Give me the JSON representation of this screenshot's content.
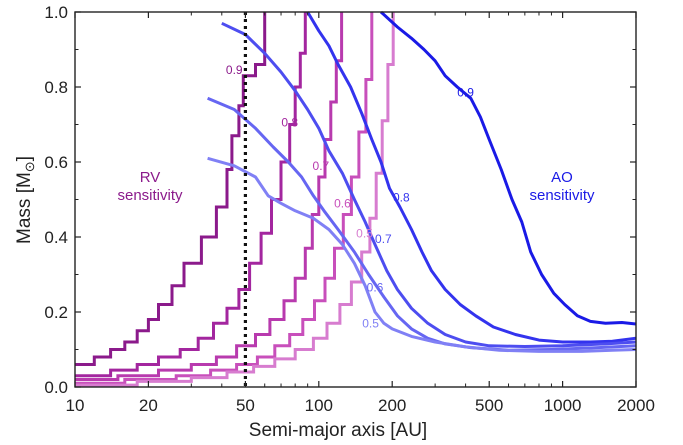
{
  "chart_data": {
    "type": "line",
    "xlabel": "Semi-major axis [AU]",
    "ylabel_main": "Mass [M",
    "ylabel_sub": "⊙",
    "ylabel_close": "]",
    "xscale": "log",
    "xlim": [
      10,
      2000
    ],
    "ylim": [
      0,
      1.0
    ],
    "x_ticks": [
      10,
      20,
      50,
      100,
      200,
      500,
      1000,
      2000
    ],
    "x_tick_labels": [
      "10",
      "20",
      "50",
      "100",
      "200",
      "500",
      "1000",
      "2000"
    ],
    "y_ticks": [
      0.0,
      0.2,
      0.4,
      0.6,
      0.8,
      1.0
    ],
    "y_tick_labels": [
      "0.0",
      "0.2",
      "0.4",
      "0.6",
      "0.8",
      "1.0"
    ],
    "vline": {
      "x": 50,
      "style": "dotted",
      "color": "#111111"
    },
    "rv_series": [
      {
        "name": "0.9",
        "label_x": 45,
        "label_y": 0.845,
        "color": "#8b1a8b",
        "steps": [
          [
            10,
            0.06
          ],
          [
            12,
            0.06
          ],
          [
            12,
            0.08
          ],
          [
            14,
            0.08
          ],
          [
            14,
            0.1
          ],
          [
            16,
            0.1
          ],
          [
            16,
            0.12
          ],
          [
            18,
            0.12
          ],
          [
            18,
            0.15
          ],
          [
            20,
            0.15
          ],
          [
            20,
            0.18
          ],
          [
            22,
            0.18
          ],
          [
            22,
            0.22
          ],
          [
            25,
            0.22
          ],
          [
            25,
            0.27
          ],
          [
            28,
            0.27
          ],
          [
            28,
            0.33
          ],
          [
            33,
            0.33
          ],
          [
            33,
            0.4
          ],
          [
            38,
            0.4
          ],
          [
            38,
            0.48
          ],
          [
            42,
            0.48
          ],
          [
            42,
            0.58
          ],
          [
            44,
            0.58
          ],
          [
            44,
            0.67
          ],
          [
            47,
            0.67
          ],
          [
            47,
            0.75
          ],
          [
            49,
            0.75
          ],
          [
            49,
            0.83
          ],
          [
            55,
            0.83
          ],
          [
            55,
            0.86
          ],
          [
            60,
            0.86
          ],
          [
            60,
            1.0
          ]
        ]
      },
      {
        "name": "0.8",
        "label_x": 76,
        "label_y": 0.705,
        "color": "#a3269f",
        "steps": [
          [
            10,
            0.03
          ],
          [
            14,
            0.03
          ],
          [
            14,
            0.045
          ],
          [
            18,
            0.045
          ],
          [
            18,
            0.06
          ],
          [
            22,
            0.06
          ],
          [
            22,
            0.08
          ],
          [
            27,
            0.08
          ],
          [
            27,
            0.1
          ],
          [
            32,
            0.1
          ],
          [
            32,
            0.13
          ],
          [
            37,
            0.13
          ],
          [
            37,
            0.17
          ],
          [
            42,
            0.17
          ],
          [
            42,
            0.21
          ],
          [
            47,
            0.21
          ],
          [
            47,
            0.26
          ],
          [
            52,
            0.26
          ],
          [
            52,
            0.33
          ],
          [
            58,
            0.33
          ],
          [
            58,
            0.41
          ],
          [
            64,
            0.41
          ],
          [
            64,
            0.5
          ],
          [
            70,
            0.5
          ],
          [
            70,
            0.6
          ],
          [
            76,
            0.6
          ],
          [
            76,
            0.7
          ],
          [
            80,
            0.7
          ],
          [
            80,
            0.8
          ],
          [
            84,
            0.8
          ],
          [
            84,
            0.89
          ],
          [
            88,
            0.89
          ],
          [
            88,
            1.0
          ]
        ]
      },
      {
        "name": "0.7",
        "label_x": 102,
        "label_y": 0.59,
        "color": "#b83aae",
        "steps": [
          [
            10,
            0.02
          ],
          [
            15,
            0.02
          ],
          [
            15,
            0.03
          ],
          [
            22,
            0.03
          ],
          [
            22,
            0.045
          ],
          [
            30,
            0.045
          ],
          [
            30,
            0.06
          ],
          [
            38,
            0.06
          ],
          [
            38,
            0.08
          ],
          [
            46,
            0.08
          ],
          [
            46,
            0.11
          ],
          [
            55,
            0.11
          ],
          [
            55,
            0.14
          ],
          [
            63,
            0.14
          ],
          [
            63,
            0.18
          ],
          [
            72,
            0.18
          ],
          [
            72,
            0.23
          ],
          [
            80,
            0.23
          ],
          [
            80,
            0.29
          ],
          [
            88,
            0.29
          ],
          [
            88,
            0.37
          ],
          [
            94,
            0.37
          ],
          [
            94,
            0.46
          ],
          [
            100,
            0.46
          ],
          [
            100,
            0.56
          ],
          [
            106,
            0.56
          ],
          [
            106,
            0.66
          ],
          [
            112,
            0.66
          ],
          [
            112,
            0.76
          ],
          [
            118,
            0.76
          ],
          [
            118,
            0.87
          ],
          [
            124,
            0.87
          ],
          [
            124,
            1.0
          ]
        ]
      },
      {
        "name": "0.6",
        "label_x": 125,
        "label_y": 0.49,
        "color": "#c84fbb",
        "steps": [
          [
            10,
            0.01
          ],
          [
            16,
            0.01
          ],
          [
            16,
            0.02
          ],
          [
            26,
            0.02
          ],
          [
            26,
            0.03
          ],
          [
            36,
            0.03
          ],
          [
            36,
            0.045
          ],
          [
            46,
            0.045
          ],
          [
            46,
            0.06
          ],
          [
            56,
            0.06
          ],
          [
            56,
            0.08
          ],
          [
            66,
            0.08
          ],
          [
            66,
            0.11
          ],
          [
            76,
            0.11
          ],
          [
            76,
            0.14
          ],
          [
            86,
            0.14
          ],
          [
            86,
            0.18
          ],
          [
            96,
            0.18
          ],
          [
            96,
            0.23
          ],
          [
            106,
            0.23
          ],
          [
            106,
            0.29
          ],
          [
            116,
            0.29
          ],
          [
            116,
            0.37
          ],
          [
            126,
            0.37
          ],
          [
            126,
            0.46
          ],
          [
            136,
            0.46
          ],
          [
            136,
            0.56
          ],
          [
            146,
            0.56
          ],
          [
            146,
            0.68
          ],
          [
            156,
            0.68
          ],
          [
            156,
            0.82
          ],
          [
            165,
            0.82
          ],
          [
            165,
            1.0
          ]
        ]
      },
      {
        "name": "0.5",
        "label_x": 154,
        "label_y": 0.41,
        "color": "#d77ccf",
        "steps": [
          [
            10,
            0.005
          ],
          [
            18,
            0.005
          ],
          [
            18,
            0.015
          ],
          [
            30,
            0.015
          ],
          [
            30,
            0.025
          ],
          [
            42,
            0.025
          ],
          [
            42,
            0.04
          ],
          [
            54,
            0.04
          ],
          [
            54,
            0.055
          ],
          [
            66,
            0.055
          ],
          [
            66,
            0.075
          ],
          [
            80,
            0.075
          ],
          [
            80,
            0.1
          ],
          [
            95,
            0.1
          ],
          [
            95,
            0.13
          ],
          [
            108,
            0.13
          ],
          [
            108,
            0.17
          ],
          [
            122,
            0.17
          ],
          [
            122,
            0.22
          ],
          [
            136,
            0.22
          ],
          [
            136,
            0.28
          ],
          [
            150,
            0.28
          ],
          [
            150,
            0.36
          ],
          [
            162,
            0.36
          ],
          [
            162,
            0.45
          ],
          [
            172,
            0.45
          ],
          [
            172,
            0.57
          ],
          [
            182,
            0.57
          ],
          [
            182,
            0.71
          ],
          [
            192,
            0.71
          ],
          [
            192,
            0.86
          ],
          [
            202,
            0.86
          ],
          [
            202,
            1.0
          ]
        ]
      }
    ],
    "ao_series": [
      {
        "name": "0.9",
        "label_x": 400,
        "label_y": 0.785,
        "color": "#1a1ae6",
        "points": [
          [
            180,
            1.0
          ],
          [
            210,
            0.96
          ],
          [
            240,
            0.93
          ],
          [
            270,
            0.9
          ],
          [
            300,
            0.87
          ],
          [
            330,
            0.83
          ],
          [
            370,
            0.8
          ],
          [
            420,
            0.77
          ],
          [
            460,
            0.72
          ],
          [
            500,
            0.66
          ],
          [
            560,
            0.58
          ],
          [
            620,
            0.5
          ],
          [
            680,
            0.44
          ],
          [
            740,
            0.36
          ],
          [
            820,
            0.3
          ],
          [
            920,
            0.25
          ],
          [
            1020,
            0.22
          ],
          [
            1150,
            0.19
          ],
          [
            1300,
            0.175
          ],
          [
            1500,
            0.17
          ],
          [
            1750,
            0.172
          ],
          [
            2000,
            0.168
          ]
        ]
      },
      {
        "name": "0.8",
        "label_x": 218,
        "label_y": 0.505,
        "color": "#3333ee",
        "points": [
          [
            90,
            1.0
          ],
          [
            100,
            0.95
          ],
          [
            110,
            0.91
          ],
          [
            120,
            0.86
          ],
          [
            135,
            0.8
          ],
          [
            150,
            0.73
          ],
          [
            165,
            0.66
          ],
          [
            180,
            0.6
          ],
          [
            195,
            0.53
          ],
          [
            215,
            0.48
          ],
          [
            240,
            0.42
          ],
          [
            265,
            0.36
          ],
          [
            290,
            0.31
          ],
          [
            330,
            0.26
          ],
          [
            380,
            0.22
          ],
          [
            440,
            0.19
          ],
          [
            520,
            0.16
          ],
          [
            640,
            0.14
          ],
          [
            800,
            0.125
          ],
          [
            1000,
            0.12
          ],
          [
            1300,
            0.12
          ],
          [
            1600,
            0.122
          ],
          [
            2000,
            0.13
          ]
        ]
      },
      {
        "name": "0.7",
        "label_x": 184,
        "label_y": 0.395,
        "color": "#4d4df0",
        "points": [
          [
            40,
            0.97
          ],
          [
            50,
            0.94
          ],
          [
            60,
            0.89
          ],
          [
            70,
            0.84
          ],
          [
            80,
            0.79
          ],
          [
            90,
            0.74
          ],
          [
            100,
            0.69
          ],
          [
            110,
            0.63
          ],
          [
            125,
            0.57
          ],
          [
            140,
            0.5
          ],
          [
            155,
            0.44
          ],
          [
            170,
            0.38
          ],
          [
            190,
            0.31
          ],
          [
            210,
            0.26
          ],
          [
            240,
            0.21
          ],
          [
            280,
            0.17
          ],
          [
            330,
            0.14
          ],
          [
            400,
            0.12
          ],
          [
            500,
            0.11
          ],
          [
            700,
            0.108
          ],
          [
            1000,
            0.11
          ],
          [
            1500,
            0.115
          ],
          [
            2000,
            0.12
          ]
        ]
      },
      {
        "name": "0.6",
        "label_x": 170,
        "label_y": 0.265,
        "color": "#6666f2",
        "points": [
          [
            35,
            0.77
          ],
          [
            45,
            0.74
          ],
          [
            55,
            0.69
          ],
          [
            65,
            0.64
          ],
          [
            75,
            0.6
          ],
          [
            85,
            0.56
          ],
          [
            95,
            0.51
          ],
          [
            105,
            0.47
          ],
          [
            120,
            0.42
          ],
          [
            140,
            0.36
          ],
          [
            160,
            0.3
          ],
          [
            185,
            0.24
          ],
          [
            210,
            0.19
          ],
          [
            240,
            0.155
          ],
          [
            280,
            0.13
          ],
          [
            330,
            0.115
          ],
          [
            420,
            0.105
          ],
          [
            600,
            0.098
          ],
          [
            900,
            0.1
          ],
          [
            1400,
            0.105
          ],
          [
            2000,
            0.11
          ]
        ]
      },
      {
        "name": "0.5",
        "label_x": 163,
        "label_y": 0.17,
        "color": "#8080f5",
        "points": [
          [
            35,
            0.61
          ],
          [
            45,
            0.59
          ],
          [
            55,
            0.56
          ],
          [
            62,
            0.51
          ],
          [
            70,
            0.49
          ],
          [
            80,
            0.47
          ],
          [
            95,
            0.45
          ],
          [
            110,
            0.42
          ],
          [
            125,
            0.38
          ],
          [
            140,
            0.33
          ],
          [
            155,
            0.27
          ],
          [
            170,
            0.2
          ],
          [
            185,
            0.17
          ],
          [
            200,
            0.155
          ],
          [
            240,
            0.135
          ],
          [
            300,
            0.12
          ],
          [
            400,
            0.107
          ],
          [
            550,
            0.098
          ],
          [
            800,
            0.095
          ],
          [
            1200,
            0.095
          ],
          [
            1600,
            0.098
          ],
          [
            2000,
            0.1
          ]
        ]
      }
    ],
    "region_labels": {
      "rv": {
        "line1": "RV",
        "line2": "sensitivity",
        "color": "#8b1a8b"
      },
      "ao": {
        "line1": "AO",
        "line2": "sensitivity",
        "color": "#1a1ae6"
      }
    }
  }
}
